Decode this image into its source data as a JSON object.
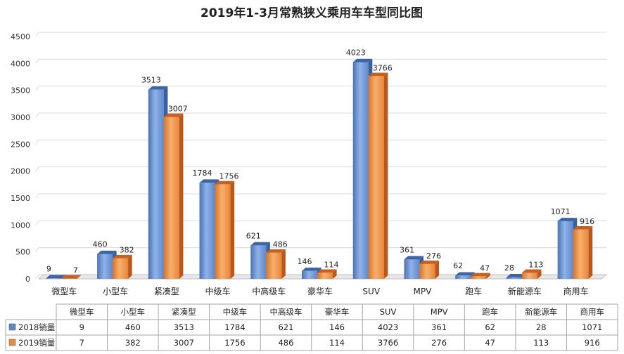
{
  "chart_data": {
    "type": "bar",
    "title": "2019年1-3月常熟狭义乘用车车型同比图",
    "categories": [
      "微型车",
      "小型车",
      "紧凑型",
      "中级车",
      "中高级车",
      "豪华车",
      "SUV",
      "MPV",
      "跑车",
      "新能源车",
      "商用车"
    ],
    "series": [
      {
        "name": "2018销量",
        "values": [
          9,
          460,
          3513,
          1784,
          621,
          146,
          4023,
          361,
          62,
          28,
          1071
        ],
        "color": "#5b87c9"
      },
      {
        "name": "2019销量",
        "values": [
          7,
          382,
          3007,
          1756,
          486,
          114,
          3766,
          276,
          47,
          113,
          916
        ],
        "color": "#ec8a3a"
      }
    ],
    "ylim": [
      0,
      4500
    ],
    "yticks": [
      0,
      500,
      1000,
      1500,
      2000,
      2500,
      3000,
      3500,
      4000,
      4500
    ],
    "xlabel": "",
    "ylabel": "",
    "grid": true,
    "data_table": true
  }
}
